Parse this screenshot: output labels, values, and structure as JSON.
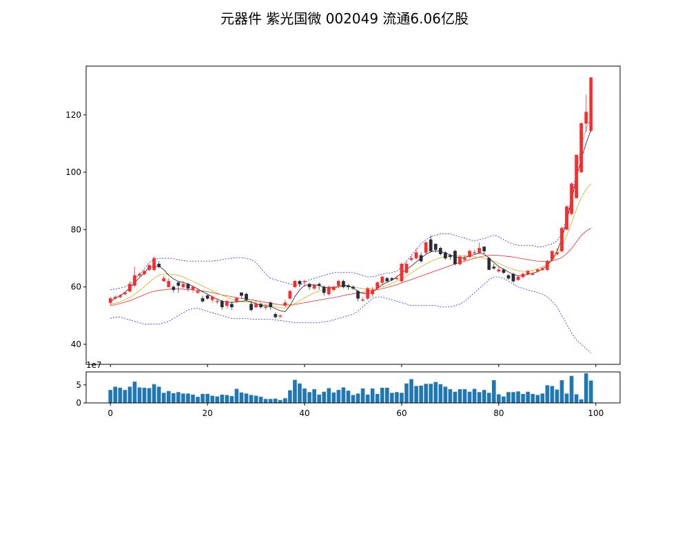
{
  "chart_data": {
    "title": "元器件 紫光国微 002049 流通6.06亿股",
    "colors": {
      "up": "#ff2a2a",
      "down": "#2b2b3a",
      "ma_short": "#1a1a1a",
      "ma_mid": "#c8b414",
      "ma_long": "#ff2020",
      "boll": "#1f1fff",
      "volume": "#1f77b4"
    },
    "main": {
      "type": "candlestick",
      "xlim": [
        -5,
        105
      ],
      "ylim": [
        33,
        137
      ],
      "yticks": [
        40,
        60,
        80,
        100,
        120
      ],
      "xticks": [
        0,
        20,
        40,
        60,
        80,
        100
      ],
      "open": [
        54.5,
        56.0,
        56.5,
        57.5,
        58.5,
        60.5,
        64.0,
        64.5,
        66.0,
        66.0,
        68.0,
        62.0,
        60.0,
        60.0,
        61.5,
        60.0,
        61.0,
        59.0,
        58.0,
        56.0,
        57.0,
        55.5,
        55.0,
        55.0,
        53.5,
        54.0,
        55.0,
        58.0,
        57.5,
        54.0,
        53.0,
        54.0,
        53.0,
        54.5,
        50.5,
        50.0,
        53.5,
        56.0,
        60.0,
        62.0,
        62.0,
        61.0,
        59.5,
        61.0,
        60.0,
        57.5,
        59.0,
        60.5,
        62.0,
        60.5,
        60.0,
        58.5,
        55.5,
        56.0,
        57.5,
        59.5,
        61.5,
        63.0,
        63.0,
        63.0,
        62.0,
        65.0,
        69.5,
        70.0,
        71.0,
        72.0,
        76.5,
        75.0,
        73.5,
        72.0,
        71.0,
        72.5,
        68.0,
        69.5,
        70.5,
        72.0,
        72.0,
        74.0,
        70.0,
        67.0,
        65.5,
        66.0,
        64.0,
        64.5,
        62.5,
        63.5,
        64.5,
        64.5,
        65.5,
        66.0,
        66.0,
        69.5,
        71.5,
        72.5,
        80.0,
        85.5,
        91.0,
        100.0,
        117.0,
        114.5
      ],
      "close": [
        56.0,
        56.5,
        57.0,
        58.0,
        61.0,
        64.0,
        64.5,
        65.5,
        67.5,
        70.0,
        67.0,
        63.0,
        62.0,
        59.0,
        60.5,
        61.0,
        59.5,
        60.0,
        58.5,
        55.0,
        56.0,
        56.5,
        55.0,
        53.0,
        55.0,
        53.0,
        56.0,
        57.0,
        55.5,
        52.0,
        54.0,
        53.0,
        53.0,
        53.0,
        49.5,
        50.0,
        54.5,
        58.5,
        62.0,
        61.0,
        62.0,
        60.0,
        60.5,
        60.5,
        58.0,
        60.0,
        60.0,
        62.0,
        60.0,
        60.0,
        59.5,
        56.0,
        55.5,
        59.5,
        59.0,
        61.5,
        63.5,
        62.0,
        62.5,
        63.0,
        68.0,
        68.0,
        70.0,
        72.0,
        69.0,
        75.5,
        72.5,
        73.0,
        71.5,
        70.0,
        70.5,
        68.0,
        70.5,
        70.0,
        72.5,
        72.0,
        73.5,
        72.5,
        66.0,
        66.5,
        66.0,
        65.0,
        63.0,
        62.0,
        63.5,
        64.5,
        65.5,
        64.5,
        66.0,
        66.5,
        69.0,
        72.5,
        72.0,
        80.5,
        88.0,
        96.0,
        106.0,
        117.0,
        121.0,
        133.0
      ],
      "high": [
        56.5,
        57.0,
        57.5,
        58.5,
        62.0,
        67.0,
        65.0,
        66.0,
        68.0,
        70.5,
        69.0,
        64.0,
        63.0,
        60.5,
        62.0,
        62.0,
        61.5,
        60.5,
        59.0,
        57.0,
        57.5,
        57.0,
        56.0,
        55.5,
        55.5,
        55.0,
        56.5,
        58.0,
        58.0,
        55.0,
        55.0,
        54.5,
        54.0,
        55.0,
        51.0,
        50.5,
        55.5,
        59.0,
        62.5,
        62.5,
        62.5,
        61.5,
        61.0,
        61.5,
        60.5,
        60.5,
        60.5,
        62.5,
        62.5,
        61.0,
        60.5,
        59.0,
        56.5,
        60.0,
        60.0,
        62.0,
        64.0,
        63.5,
        63.5,
        64.0,
        68.5,
        69.0,
        71.0,
        73.5,
        72.0,
        76.0,
        78.0,
        75.0,
        74.0,
        72.5,
        71.5,
        73.0,
        71.0,
        71.0,
        73.0,
        73.0,
        75.5,
        74.0,
        70.5,
        68.0,
        67.0,
        66.5,
        64.5,
        65.0,
        64.0,
        65.0,
        66.0,
        65.5,
        66.5,
        67.0,
        69.5,
        72.5,
        73.5,
        81.0,
        88.5,
        96.5,
        106.0,
        117.5,
        127.0,
        133.0
      ],
      "low": [
        53.5,
        55.5,
        56.0,
        57.0,
        58.0,
        60.0,
        63.5,
        64.0,
        65.5,
        65.5,
        66.5,
        62.0,
        60.0,
        58.0,
        58.0,
        59.5,
        58.5,
        58.0,
        57.5,
        54.5,
        55.5,
        54.5,
        54.0,
        52.0,
        52.5,
        52.0,
        54.5,
        56.0,
        55.0,
        51.5,
        52.5,
        52.5,
        52.0,
        52.0,
        49.0,
        49.0,
        53.0,
        55.5,
        59.5,
        60.0,
        60.0,
        59.0,
        59.0,
        59.0,
        57.0,
        57.0,
        58.5,
        59.5,
        59.5,
        59.0,
        59.0,
        55.0,
        55.0,
        55.5,
        56.5,
        59.0,
        61.0,
        61.5,
        62.0,
        62.5,
        61.5,
        64.5,
        69.0,
        69.5,
        68.5,
        71.5,
        72.0,
        72.0,
        71.0,
        69.5,
        69.5,
        67.5,
        67.5,
        69.0,
        70.0,
        71.5,
        71.5,
        71.5,
        66.0,
        66.0,
        65.0,
        64.5,
        62.5,
        61.5,
        62.0,
        63.0,
        64.0,
        64.0,
        65.0,
        65.5,
        65.5,
        69.0,
        71.0,
        72.0,
        80.0,
        85.0,
        91.0,
        100.0,
        114.0,
        114.0
      ],
      "ma_short": [
        54.8,
        56.1,
        56.9,
        58.1,
        59.8,
        61.6,
        63.2,
        64.9,
        66.9,
        67.1,
        67.2,
        66.0,
        64.1,
        62.8,
        61.9,
        61.6,
        61.0,
        60.2,
        59.3,
        58.3,
        57.5,
        56.6,
        55.7,
        55.1,
        54.7,
        54.6,
        54.8,
        55.0,
        55.2,
        54.8,
        54.1,
        53.5,
        53.4,
        53.2,
        52.4,
        51.7,
        51.4,
        53.5,
        56.6,
        59.0,
        60.5,
        60.8,
        60.7,
        60.5,
        59.9,
        59.7,
        59.8,
        60.2,
        60.6,
        60.4,
        59.7,
        58.4,
        57.7,
        57.6,
        58.2,
        59.5,
        60.8,
        61.6,
        62.4,
        63.5,
        64.9,
        66.1,
        67.3,
        68.7,
        70.0,
        71.4,
        72.2,
        72.6,
        72.4,
        71.8,
        71.2,
        70.5,
        70.1,
        70.3,
        70.8,
        71.3,
        71.8,
        71.5,
        70.0,
        68.5,
        67.1,
        66.2,
        65.2,
        64.4,
        63.9,
        64.0,
        64.4,
        64.7,
        65.3,
        66.2,
        67.5,
        69.5,
        72.4,
        76.8,
        83.0,
        90.2,
        98.1,
        104.7,
        110.1,
        114.8
      ],
      "ma_mid": [
        54.0,
        54.3,
        54.8,
        55.5,
        56.3,
        57.4,
        58.7,
        60.1,
        61.6,
        63.0,
        64.1,
        64.5,
        64.5,
        64.3,
        64.0,
        63.5,
        62.7,
        61.9,
        61.1,
        60.3,
        59.5,
        58.7,
        57.9,
        57.1,
        56.4,
        55.7,
        55.2,
        54.9,
        54.8,
        54.6,
        54.3,
        54.0,
        53.8,
        53.6,
        53.1,
        52.7,
        52.7,
        53.3,
        54.2,
        55.2,
        56.2,
        57.1,
        57.9,
        58.6,
        59.0,
        59.3,
        59.6,
        59.9,
        60.1,
        60.1,
        60.0,
        59.7,
        59.4,
        59.2,
        59.3,
        59.6,
        60.0,
        60.6,
        61.3,
        62.0,
        62.8,
        63.8,
        64.9,
        66.0,
        67.0,
        68.0,
        68.9,
        69.6,
        70.2,
        70.6,
        70.8,
        70.9,
        70.9,
        70.8,
        70.7,
        70.5,
        70.3,
        70.0,
        69.5,
        68.9,
        68.2,
        67.5,
        66.7,
        66.1,
        65.6,
        65.4,
        65.5,
        65.8,
        66.3,
        67.0,
        68.0,
        69.4,
        71.4,
        74.2,
        77.9,
        82.3,
        87.0,
        91.1,
        94.0,
        96.0
      ],
      "ma_long": [
        53.5,
        53.8,
        54.2,
        54.7,
        55.2,
        55.9,
        56.6,
        57.3,
        58.0,
        58.5,
        58.8,
        59.0,
        59.2,
        59.3,
        59.3,
        59.2,
        59.1,
        59.0,
        58.8,
        58.6,
        58.3,
        58.0,
        57.6,
        57.2,
        56.9,
        56.6,
        56.3,
        56.0,
        55.8,
        55.5,
        55.2,
        54.9,
        54.6,
        54.3,
        54.0,
        53.8,
        53.7,
        53.7,
        53.9,
        54.2,
        54.5,
        54.8,
        55.1,
        55.4,
        55.7,
        56.0,
        56.3,
        56.6,
        57.0,
        57.3,
        57.6,
        57.9,
        58.1,
        58.4,
        58.7,
        59.0,
        59.4,
        59.8,
        60.3,
        60.8,
        61.4,
        62.0,
        62.6,
        63.2,
        63.8,
        64.4,
        65.0,
        65.6,
        66.2,
        66.8,
        67.4,
        68.0,
        68.5,
        69.0,
        69.5,
        70.0,
        70.4,
        70.8,
        71.0,
        71.1,
        71.0,
        70.8,
        70.6,
        70.4,
        70.1,
        69.8,
        69.5,
        69.2,
        69.0,
        68.9,
        68.9,
        69.1,
        69.5,
        70.3,
        71.6,
        73.4,
        75.7,
        77.9,
        79.5,
        80.5
      ],
      "boll_upper": [
        59.0,
        59.3,
        59.6,
        60.0,
        61.0,
        62.5,
        64.5,
        66.5,
        68.5,
        69.5,
        70.0,
        70.0,
        70.0,
        69.8,
        69.5,
        69.2,
        69.0,
        69.0,
        69.0,
        69.0,
        69.0,
        69.0,
        69.2,
        69.5,
        69.8,
        70.0,
        70.2,
        70.2,
        70.0,
        69.5,
        68.5,
        66.5,
        64.5,
        63.0,
        62.5,
        62.0,
        61.5,
        61.0,
        60.5,
        60.5,
        61.5,
        62.5,
        63.0,
        63.5,
        64.0,
        64.5,
        65.0,
        65.0,
        65.0,
        65.0,
        65.0,
        64.5,
        64.0,
        63.5,
        63.5,
        64.0,
        64.5,
        64.8,
        65.0,
        65.5,
        67.0,
        69.0,
        71.0,
        73.0,
        75.0,
        76.5,
        77.5,
        78.0,
        78.5,
        78.5,
        78.5,
        78.0,
        77.5,
        77.0,
        76.5,
        76.0,
        76.5,
        77.0,
        77.5,
        78.0,
        77.5,
        76.5,
        75.5,
        75.0,
        74.5,
        74.5,
        74.5,
        74.5,
        74.0,
        74.0,
        74.5,
        75.0,
        76.0,
        78.5,
        84.0,
        91.0,
        100.0,
        109.0,
        115.0,
        119.0
      ],
      "boll_lower": [
        49.0,
        49.5,
        49.5,
        49.0,
        48.5,
        48.0,
        47.5,
        47.0,
        47.0,
        47.0,
        47.0,
        47.5,
        48.0,
        49.0,
        50.0,
        51.0,
        52.0,
        52.5,
        52.5,
        52.0,
        51.5,
        51.0,
        50.5,
        50.0,
        49.5,
        49.0,
        49.0,
        49.0,
        49.0,
        48.8,
        48.7,
        48.7,
        48.7,
        48.7,
        48.5,
        48.3,
        48.0,
        47.8,
        47.6,
        47.5,
        47.5,
        47.5,
        47.5,
        47.6,
        47.8,
        48.0,
        48.5,
        49.0,
        49.5,
        50.0,
        50.5,
        51.5,
        53.0,
        54.5,
        56.0,
        56.5,
        56.5,
        56.0,
        55.5,
        55.0,
        54.5,
        54.0,
        53.5,
        53.5,
        53.5,
        53.5,
        53.5,
        53.5,
        53.0,
        53.0,
        53.0,
        53.5,
        54.0,
        55.0,
        56.5,
        58.0,
        59.5,
        61.0,
        62.5,
        63.5,
        63.5,
        63.0,
        62.0,
        61.0,
        60.0,
        59.5,
        59.0,
        58.5,
        58.0,
        57.5,
        56.5,
        55.0,
        53.0,
        50.0,
        47.0,
        44.0,
        41.5,
        40.0,
        38.5,
        37.0
      ]
    },
    "volume": {
      "type": "bar",
      "ylim": [
        0,
        8.6
      ],
      "yticks": [
        0,
        5
      ],
      "offset_label": "1e7",
      "values": [
        3.6,
        4.5,
        4.2,
        3.6,
        4.5,
        5.9,
        4.3,
        4.2,
        4.1,
        5.2,
        4.5,
        2.8,
        3.3,
        2.7,
        3.0,
        2.6,
        2.6,
        2.3,
        1.7,
        2.5,
        2.5,
        2.0,
        1.8,
        2.3,
        2.2,
        1.9,
        3.9,
        2.9,
        2.6,
        2.2,
        2.0,
        1.7,
        1.1,
        1.1,
        1.2,
        0.8,
        1.3,
        3.5,
        6.4,
        5.4,
        4.0,
        3.0,
        3.8,
        2.3,
        3.1,
        4.1,
        2.9,
        3.6,
        4.3,
        3.4,
        2.2,
        2.6,
        4.0,
        2.3,
        4.0,
        2.5,
        4.2,
        4.2,
        2.8,
        3.0,
        2.8,
        5.4,
        6.6,
        4.7,
        4.8,
        5.3,
        5.3,
        5.8,
        5.2,
        4.5,
        3.8,
        3.1,
        3.8,
        3.8,
        3.1,
        3.9,
        3.0,
        3.6,
        2.8,
        6.3,
        2.4,
        1.8,
        3.0,
        3.0,
        3.2,
        2.5,
        3.1,
        2.5,
        2.2,
        2.6,
        4.9,
        4.7,
        3.7,
        6.3,
        2.6,
        7.5,
        2.4,
        1.0,
        8.2,
        6.2
      ]
    }
  }
}
